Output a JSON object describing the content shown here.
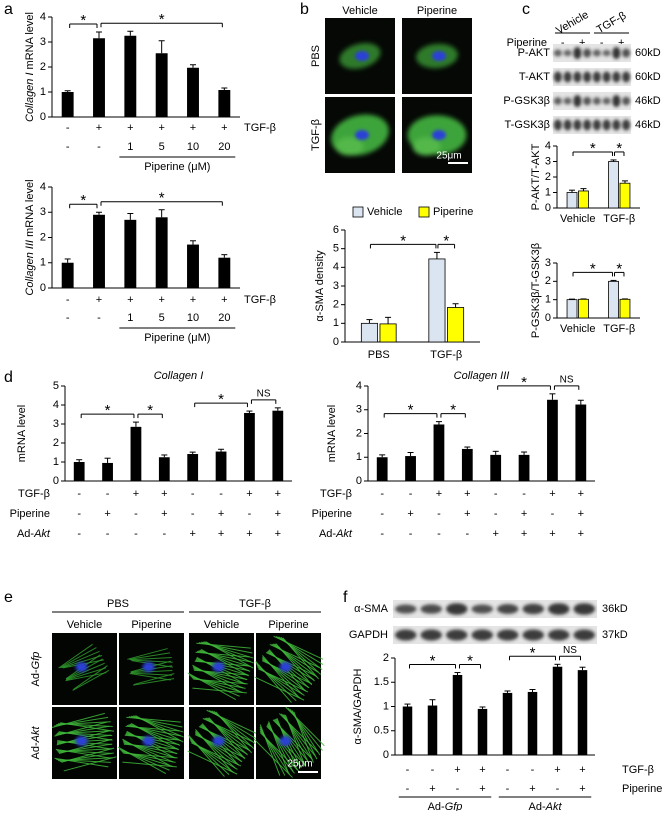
{
  "panel_labels": [
    "a",
    "b",
    "c",
    "d",
    "e",
    "f"
  ],
  "micrographs_b": {
    "columns": [
      "Vehicle",
      "Piperine"
    ],
    "rows": [
      "PBS",
      "TGF-β"
    ],
    "scale": "25μm"
  },
  "blot_c": {
    "groups": [
      "Vehicle",
      "TGF-β"
    ],
    "treatment": {
      "label": "Piperine",
      "marks": [
        "-",
        "+",
        "-",
        "+"
      ]
    },
    "bands": [
      {
        "name": "P-AKT",
        "size": "60kD"
      },
      {
        "name": "T-AKT",
        "size": "60kD"
      },
      {
        "name": "P-GSK3β",
        "size": "46kD"
      },
      {
        "name": "T-GSK3β",
        "size": "46kD"
      }
    ]
  },
  "micrographs_e": {
    "groups": [
      "PBS",
      "TGF-β"
    ],
    "columns": [
      "Vehicle",
      "Piperine",
      "Vehicle",
      "Piperine"
    ],
    "rows": [
      [
        {
          "text": "Ad-"
        },
        {
          "text": "Gfp",
          "italic": true
        }
      ],
      [
        {
          "text": "Ad-"
        },
        {
          "text": "Akt",
          "italic": true
        }
      ]
    ],
    "scale": "25μm"
  },
  "blot_f": {
    "bands": [
      {
        "name": "α-SMA",
        "size": "36kD"
      },
      {
        "name": "GAPDH",
        "size": "37kD"
      }
    ]
  },
  "chart_data": [
    {
      "type": "bar",
      "ylabel": [
        {
          "text": "Collagen I",
          "italic": true
        },
        {
          "text": "mRNA level"
        }
      ],
      "values": [
        1,
        3.15,
        3.25,
        2.55,
        1.97,
        1.08
      ],
      "errors": [
        0.05,
        0.25,
        0.18,
        0.5,
        0.12,
        0.08
      ],
      "color": "#000000",
      "ylim": [
        0,
        4
      ],
      "yticks": [
        0,
        1,
        2,
        3,
        4
      ],
      "rows": [
        {
          "label": [
            {
              "text": "TGF-β"
            }
          ],
          "marks": [
            "-",
            "+",
            "+",
            "+",
            "+",
            "+"
          ]
        },
        {
          "marks": [
            "-",
            "-",
            "1",
            "5",
            "10",
            "20"
          ]
        }
      ],
      "groups": [
        {
          "label": [
            {
              "text": "Piperine (μM)"
            }
          ],
          "from": 2,
          "to": 5
        }
      ],
      "significance": [
        {
          "from": 0,
          "to": 1,
          "label": "*"
        },
        {
          "from": 1,
          "to": 5,
          "label": "*"
        }
      ]
    },
    {
      "type": "bar",
      "ylabel": [
        {
          "text": "Collagen III",
          "italic": true
        },
        {
          "text": "mRNA level"
        }
      ],
      "values": [
        1,
        2.9,
        2.7,
        2.8,
        1.72,
        1.2
      ],
      "errors": [
        0.15,
        0.1,
        0.25,
        0.3,
        0.15,
        0.12
      ],
      "color": "#000000",
      "ylim": [
        0,
        4
      ],
      "yticks": [
        0,
        1,
        2,
        3,
        4
      ],
      "rows": [
        {
          "label": [
            {
              "text": "TGF-β"
            }
          ],
          "marks": [
            "-",
            "+",
            "+",
            "+",
            "+",
            "+"
          ]
        },
        {
          "marks": [
            "-",
            "-",
            "1",
            "5",
            "10",
            "20"
          ]
        }
      ],
      "groups": [
        {
          "label": [
            {
              "text": "Piperine (μM)"
            }
          ],
          "from": 2,
          "to": 5
        }
      ],
      "significance": [
        {
          "from": 0,
          "to": 1,
          "label": "*"
        },
        {
          "from": 1,
          "to": 5,
          "label": "*"
        }
      ]
    },
    {
      "type": "grouped_bar",
      "ylabel": [
        {
          "text": "α-SMA density"
        }
      ],
      "categories": [
        "PBS",
        "TGF-β"
      ],
      "series": [
        {
          "name": "Vehicle",
          "color": "#dbe5f1",
          "values": [
            1,
            4.45
          ],
          "errors": [
            0.2,
            0.35
          ]
        },
        {
          "name": "Piperine",
          "color": "#ffff00",
          "values": [
            0.97,
            1.85
          ],
          "errors": [
            0.35,
            0.2
          ]
        }
      ],
      "ylim": [
        0,
        6
      ],
      "yticks": [
        0,
        1,
        2,
        3,
        4,
        5,
        6
      ],
      "legend": "top",
      "significance": [
        {
          "from": [
            0,
            0
          ],
          "to": [
            1,
            0
          ],
          "label": "*"
        },
        {
          "from": [
            1,
            0
          ],
          "to": [
            1,
            1
          ],
          "label": "*"
        }
      ]
    },
    {
      "type": "grouped_bar",
      "ylabel": [
        {
          "text": "P-AKT/T-AKT"
        }
      ],
      "categories": [
        "Vehicle",
        "TGF-β"
      ],
      "series": [
        {
          "color": "#dbe5f1",
          "values": [
            1,
            3
          ],
          "errors": [
            0.15,
            0.1
          ]
        },
        {
          "color": "#ffff00",
          "values": [
            1.1,
            1.6
          ],
          "errors": [
            0.15,
            0.15
          ]
        }
      ],
      "ylim": [
        0,
        4
      ],
      "yticks": [
        0,
        1,
        2,
        3,
        4
      ],
      "significance": [
        {
          "from": [
            0,
            0
          ],
          "to": [
            1,
            0
          ],
          "label": "*"
        },
        {
          "from": [
            1,
            0
          ],
          "to": [
            1,
            1
          ],
          "label": "*"
        }
      ]
    },
    {
      "type": "grouped_bar",
      "ylabel": [
        {
          "text": "P-GSK3β/T-GSK3β"
        }
      ],
      "categories": [
        "Vehicle",
        "TGF-β"
      ],
      "series": [
        {
          "color": "#dbe5f1",
          "values": [
            1,
            2
          ],
          "errors": [
            0.03,
            0.05
          ]
        },
        {
          "color": "#ffff00",
          "values": [
            1.02,
            1.02
          ],
          "errors": [
            0.02,
            0.02
          ]
        }
      ],
      "ylim": [
        0,
        3
      ],
      "yticks": [
        0,
        1,
        2,
        3
      ],
      "significance": [
        {
          "from": [
            0,
            0
          ],
          "to": [
            1,
            0
          ],
          "label": "*"
        },
        {
          "from": [
            1,
            0
          ],
          "to": [
            1,
            1
          ],
          "label": "*"
        }
      ]
    },
    {
      "type": "bar",
      "title": [
        {
          "text": "Collagen I",
          "italic": true
        }
      ],
      "ylabel": [
        {
          "text": "mRNA level"
        }
      ],
      "values": [
        1,
        0.95,
        2.85,
        1.25,
        1.42,
        1.55,
        3.58,
        3.7
      ],
      "errors": [
        0.12,
        0.25,
        0.25,
        0.12,
        0.1,
        0.12,
        0.1,
        0.15
      ],
      "color": "#000000",
      "ylim": [
        0,
        5
      ],
      "yticks": [
        0,
        1,
        2,
        3,
        4,
        5
      ],
      "rows": [
        {
          "label": [
            {
              "text": "TGF-β"
            }
          ],
          "marks": [
            "-",
            "-",
            "+",
            "+",
            "-",
            "-",
            "+",
            "+"
          ]
        },
        {
          "label": [
            {
              "text": "Piperine"
            }
          ],
          "marks": [
            "-",
            "+",
            "-",
            "+",
            "-",
            "+",
            "-",
            "+"
          ]
        },
        {
          "label": [
            {
              "text": "Ad-"
            },
            {
              "text": "Akt",
              "italic": true
            }
          ],
          "marks": [
            "-",
            "-",
            "-",
            "-",
            "+",
            "+",
            "+",
            "+"
          ]
        }
      ],
      "significance": [
        {
          "from": 0,
          "to": 2,
          "label": "*"
        },
        {
          "from": 2,
          "to": 3,
          "label": "*"
        },
        {
          "from": 4,
          "to": 6,
          "label": "*"
        },
        {
          "from": 6,
          "to": 7,
          "label": "NS"
        }
      ]
    },
    {
      "type": "bar",
      "title": [
        {
          "text": "Collagen III",
          "italic": true
        }
      ],
      "ylabel": [
        {
          "text": "mRNA level"
        }
      ],
      "values": [
        1,
        1.05,
        2.38,
        1.35,
        1.1,
        1.1,
        3.42,
        3.22
      ],
      "errors": [
        0.1,
        0.15,
        0.12,
        0.08,
        0.15,
        0.12,
        0.25,
        0.18
      ],
      "color": "#000000",
      "ylim": [
        0,
        4
      ],
      "yticks": [
        0,
        1,
        2,
        3,
        4
      ],
      "rows": [
        {
          "label": [
            {
              "text": "TGF-β"
            }
          ],
          "marks": [
            "-",
            "-",
            "+",
            "+",
            "-",
            "-",
            "+",
            "+"
          ]
        },
        {
          "label": [
            {
              "text": "Piperine"
            }
          ],
          "marks": [
            "-",
            "+",
            "-",
            "+",
            "-",
            "+",
            "-",
            "+"
          ]
        },
        {
          "label": [
            {
              "text": "Ad-"
            },
            {
              "text": "Akt",
              "italic": true
            }
          ],
          "marks": [
            "-",
            "-",
            "-",
            "-",
            "+",
            "+",
            "+",
            "+"
          ]
        }
      ],
      "significance": [
        {
          "from": 0,
          "to": 2,
          "label": "*"
        },
        {
          "from": 2,
          "to": 3,
          "label": "*"
        },
        {
          "from": 4,
          "to": 6,
          "label": "*"
        },
        {
          "from": 6,
          "to": 7,
          "label": "NS"
        }
      ]
    },
    {
      "type": "bar",
      "ylabel": [
        {
          "text": "α-SMA/GAPDH"
        }
      ],
      "values": [
        1,
        1.02,
        1.65,
        0.95,
        1.28,
        1.3,
        1.82,
        1.75
      ],
      "errors": [
        0.05,
        0.12,
        0.05,
        0.04,
        0.04,
        0.05,
        0.05,
        0.06
      ],
      "color": "#000000",
      "ylim": [
        0,
        2
      ],
      "yticks": [
        0,
        0.5,
        1,
        1.5,
        2
      ],
      "rows": [
        {
          "label": [
            {
              "text": "TGF-β"
            }
          ],
          "marks": [
            "-",
            "-",
            "+",
            "+",
            "-",
            "-",
            "+",
            "+"
          ]
        },
        {
          "label": [
            {
              "text": "Piperine"
            }
          ],
          "marks": [
            "-",
            "+",
            "-",
            "+",
            "-",
            "+",
            "-",
            "+"
          ]
        }
      ],
      "groups": [
        {
          "label": [
            {
              "text": "Ad-"
            },
            {
              "text": "Gfp",
              "italic": true
            }
          ],
          "from": 0,
          "to": 3
        },
        {
          "label": [
            {
              "text": "Ad-"
            },
            {
              "text": "Akt",
              "italic": true
            }
          ],
          "from": 4,
          "to": 7
        }
      ],
      "significance": [
        {
          "from": 0,
          "to": 2,
          "label": "*"
        },
        {
          "from": 2,
          "to": 3,
          "label": "*"
        },
        {
          "from": 4,
          "to": 6,
          "label": "*"
        },
        {
          "from": 6,
          "to": 7,
          "label": "NS"
        }
      ]
    }
  ]
}
